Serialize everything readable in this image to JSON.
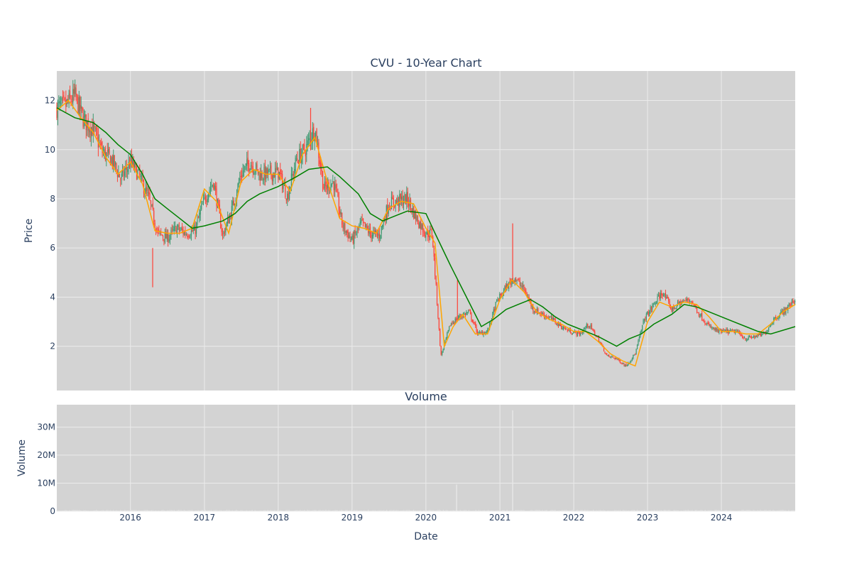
{
  "chart_data": [
    {
      "type": "candlestick",
      "title": "CVU - 10-Year Chart",
      "xlabel": "",
      "ylabel": "Price",
      "ylim": [
        0.2,
        13.2
      ],
      "yticks": [
        2,
        4,
        6,
        8,
        10,
        12
      ],
      "grid": true,
      "legend": "none",
      "xlim": [
        "2015-01-02",
        "2024-12-31"
      ],
      "xticks": [
        "2016",
        "2017",
        "2018",
        "2019",
        "2020",
        "2021",
        "2022",
        "2023",
        "2024"
      ],
      "series": [
        {
          "name": "",
          "kind": "close_estimate",
          "x": [
            "2015-01-02",
            "2015-02-15",
            "2015-04-01",
            "2015-05-15",
            "2015-07-01",
            "2015-08-15",
            "2015-10-01",
            "2015-11-15",
            "2016-01-01",
            "2016-02-15",
            "2016-04-01",
            "2016-05-15",
            "2016-07-01",
            "2016-08-15",
            "2016-10-01",
            "2016-11-15",
            "2017-01-01",
            "2017-02-15",
            "2017-04-01",
            "2017-05-15",
            "2017-07-01",
            "2017-08-15",
            "2017-10-01",
            "2017-11-15",
            "2018-01-01",
            "2018-02-15",
            "2018-04-01",
            "2018-05-15",
            "2018-07-01",
            "2018-08-15",
            "2018-10-01",
            "2018-11-15",
            "2019-01-01",
            "2019-02-15",
            "2019-04-01",
            "2019-05-15",
            "2019-07-01",
            "2019-08-15",
            "2019-10-01",
            "2019-11-15",
            "2020-01-01",
            "2020-02-01",
            "2020-03-15",
            "2020-05-01",
            "2020-06-15",
            "2020-08-01",
            "2020-09-15",
            "2020-11-01",
            "2020-12-15",
            "2021-02-01",
            "2021-03-15",
            "2021-05-01",
            "2021-06-15",
            "2021-08-01",
            "2021-09-15",
            "2021-11-01",
            "2021-12-15",
            "2022-02-01",
            "2022-03-15",
            "2022-05-01",
            "2022-06-15",
            "2022-08-01",
            "2022-09-15",
            "2022-11-01",
            "2022-12-15",
            "2023-02-01",
            "2023-03-15",
            "2023-05-01",
            "2023-06-15",
            "2023-08-01",
            "2023-09-15",
            "2023-11-01",
            "2023-12-15",
            "2024-02-01",
            "2024-03-15",
            "2024-05-01",
            "2024-06-15",
            "2024-08-01",
            "2024-09-15",
            "2024-11-01",
            "2024-12-31"
          ],
          "close": [
            11.7,
            11.8,
            12.2,
            11.2,
            10.8,
            9.9,
            9.6,
            8.8,
            9.5,
            8.9,
            8.0,
            6.6,
            6.4,
            6.8,
            6.6,
            6.7,
            8.0,
            8.7,
            6.5,
            7.5,
            9.0,
            9.5,
            9.0,
            9.0,
            9.1,
            8.1,
            9.6,
            10.0,
            10.9,
            8.4,
            8.7,
            6.9,
            6.3,
            7.0,
            6.6,
            6.5,
            7.8,
            7.9,
            8.0,
            7.2,
            6.6,
            6.6,
            1.6,
            2.9,
            3.2,
            3.4,
            2.5,
            2.6,
            3.8,
            4.4,
            4.8,
            4.3,
            3.5,
            3.3,
            3.1,
            2.8,
            2.6,
            2.5,
            2.9,
            2.3,
            1.6,
            1.5,
            1.2,
            1.7,
            3.1,
            3.7,
            4.2,
            3.5,
            3.8,
            3.9,
            3.3,
            2.8,
            2.6,
            2.6,
            2.6,
            2.3,
            2.4,
            2.5,
            3.1,
            3.4,
            3.9
          ]
        },
        {
          "name": "",
          "kind": "moving_average_short",
          "color": "#ffa500",
          "x": [
            "2015-01-02",
            "2015-03-01",
            "2015-05-01",
            "2015-07-01",
            "2015-09-01",
            "2015-11-01",
            "2016-01-01",
            "2016-03-01",
            "2016-05-01",
            "2016-07-01",
            "2016-09-01",
            "2016-11-01",
            "2017-01-01",
            "2017-03-01",
            "2017-05-01",
            "2017-07-01",
            "2017-09-01",
            "2017-11-01",
            "2018-01-01",
            "2018-03-01",
            "2018-05-01",
            "2018-07-01",
            "2018-09-01",
            "2018-11-01",
            "2019-01-01",
            "2019-03-01",
            "2019-05-01",
            "2019-07-01",
            "2019-09-01",
            "2019-11-01",
            "2020-01-01",
            "2020-02-15",
            "2020-04-01",
            "2020-05-15",
            "2020-07-01",
            "2020-09-01",
            "2020-11-01",
            "2021-01-01",
            "2021-03-01",
            "2021-05-01",
            "2021-07-01",
            "2021-09-01",
            "2021-11-01",
            "2022-01-01",
            "2022-03-01",
            "2022-05-01",
            "2022-07-01",
            "2022-09-01",
            "2022-11-01",
            "2023-01-01",
            "2023-03-01",
            "2023-05-01",
            "2023-07-01",
            "2023-09-01",
            "2023-11-01",
            "2024-01-01",
            "2024-03-01",
            "2024-05-01",
            "2024-07-01",
            "2024-09-01",
            "2024-11-01",
            "2024-12-31"
          ],
          "values": [
            11.6,
            12.0,
            11.3,
            10.7,
            9.7,
            9.0,
            9.5,
            8.6,
            6.7,
            6.6,
            6.6,
            6.8,
            8.4,
            7.9,
            6.6,
            8.7,
            9.2,
            9.0,
            9.0,
            8.3,
            9.8,
            10.5,
            8.7,
            7.2,
            6.9,
            6.8,
            6.6,
            7.6,
            7.9,
            7.8,
            6.8,
            6.2,
            2.0,
            2.8,
            3.3,
            2.5,
            2.5,
            3.9,
            4.7,
            4.2,
            3.4,
            3.1,
            2.9,
            2.6,
            2.6,
            2.2,
            1.7,
            1.4,
            1.2,
            3.0,
            3.8,
            3.6,
            3.8,
            3.7,
            3.2,
            2.6,
            2.6,
            2.5,
            2.5,
            2.9,
            3.4,
            3.7
          ]
        },
        {
          "name": "",
          "kind": "moving_average_long",
          "color": "#008000",
          "x": [
            "2015-01-02",
            "2015-04-01",
            "2015-07-01",
            "2015-09-01",
            "2015-11-01",
            "2016-01-01",
            "2016-03-01",
            "2016-05-01",
            "2016-07-01",
            "2016-09-01",
            "2016-11-01",
            "2017-01-01",
            "2017-04-01",
            "2017-06-01",
            "2017-08-01",
            "2017-10-01",
            "2018-01-01",
            "2018-04-01",
            "2018-06-01",
            "2018-09-01",
            "2018-11-01",
            "2019-02-01",
            "2019-04-01",
            "2019-06-01",
            "2019-08-01",
            "2019-10-01",
            "2020-01-01",
            "2020-02-15",
            "2020-05-01",
            "2020-08-01",
            "2020-10-01",
            "2020-12-01",
            "2021-02-01",
            "2021-04-01",
            "2021-06-01",
            "2021-08-01",
            "2021-10-01",
            "2021-12-01",
            "2022-02-01",
            "2022-05-01",
            "2022-08-01",
            "2022-10-01",
            "2022-12-01",
            "2023-02-01",
            "2023-05-01",
            "2023-07-01",
            "2023-09-01",
            "2023-11-01",
            "2024-01-01",
            "2024-03-01",
            "2024-05-01",
            "2024-07-01",
            "2024-09-01",
            "2024-12-31"
          ],
          "values": [
            11.7,
            11.3,
            11.1,
            10.7,
            10.2,
            9.8,
            9.0,
            8.0,
            7.6,
            7.2,
            6.8,
            6.9,
            7.1,
            7.4,
            7.9,
            8.2,
            8.5,
            8.9,
            9.2,
            9.3,
            8.9,
            8.2,
            7.4,
            7.1,
            7.3,
            7.5,
            7.4,
            6.6,
            5.3,
            3.8,
            2.8,
            3.1,
            3.5,
            3.7,
            3.9,
            3.6,
            3.2,
            2.9,
            2.7,
            2.4,
            2.0,
            2.3,
            2.5,
            2.9,
            3.3,
            3.7,
            3.6,
            3.4,
            3.2,
            3.0,
            2.8,
            2.6,
            2.5,
            2.8
          ]
        }
      ]
    },
    {
      "type": "bar",
      "title": "Volume",
      "xlabel": "Date",
      "ylabel": "Volume",
      "ylim": [
        0,
        38000000
      ],
      "yticks": [
        0,
        10000000,
        20000000,
        30000000
      ],
      "ytick_labels": [
        "0",
        "10M",
        "20M",
        "30M"
      ],
      "grid": true,
      "xticks": [
        "2016",
        "2017",
        "2018",
        "2019",
        "2020",
        "2021",
        "2022",
        "2023",
        "2024"
      ],
      "spikes": [
        {
          "x": "2020-06-01",
          "value": 9500000
        },
        {
          "x": "2021-03-05",
          "value": 36000000
        }
      ],
      "typical_value": 300000
    }
  ],
  "colors": {
    "plot_bg": "#d3d3d3",
    "grid": "#ebebeb",
    "increasing": "#3d9970",
    "decreasing": "#ff4136",
    "ma_short": "#ffa500",
    "ma_long": "#008000",
    "text": "#2a3f5f",
    "volume_bar": "#e8e8e8"
  }
}
